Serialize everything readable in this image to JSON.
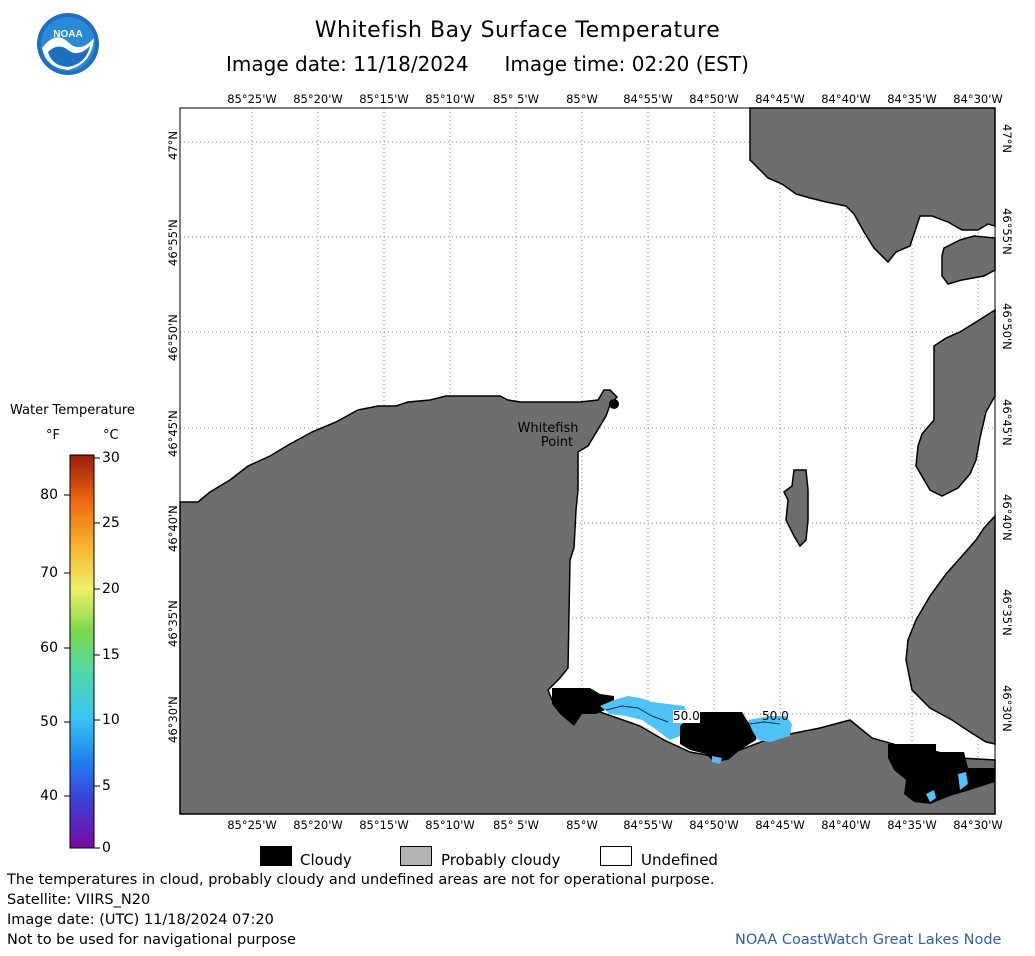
{
  "header": {
    "title": "Whitefish Bay Surface Temperature",
    "image_date": "Image date: 11/18/2024",
    "image_time": "Image time: 02:20 (EST)",
    "logo_text": "NOAA"
  },
  "map": {
    "longitude_labels": [
      "85°25'W",
      "85°20'W",
      "85°15'W",
      "85°10'W",
      "85° 5'W",
      "85°W",
      "84°55'W",
      "84°50'W",
      "84°45'W",
      "84°40'W",
      "84°35'W",
      "84°30'W"
    ],
    "latitude_labels": [
      "47°N",
      "46°55'N",
      "46°50'N",
      "46°45'N",
      "46°40'N",
      "46°35'N",
      "46°30'N"
    ],
    "place_label_line1": "Whitefish",
    "place_label_line2": "Point",
    "contour_labels": [
      "50.0",
      "50.0"
    ],
    "colors": {
      "land": "#6e6e6e",
      "cloud": "#000000",
      "water_temp_10c": "#4fc3f5",
      "water_temp_9c": "#5ab7f0",
      "grid": "#888888"
    }
  },
  "legend": {
    "title": "Water Temperature",
    "unit_f": "°F",
    "unit_c": "°C",
    "f_ticks": [
      "80",
      "70",
      "60",
      "50",
      "40"
    ],
    "c_ticks": [
      "30",
      "25",
      "20",
      "15",
      "10",
      "5",
      "0"
    ],
    "c_range": [
      0,
      30
    ],
    "f_range_approx": [
      32,
      86
    ]
  },
  "key": {
    "cloudy": "Cloudy",
    "probably_cloudy": "Probably cloudy",
    "undefined": "Undefined",
    "colors": {
      "cloudy": "#000000",
      "probably_cloudy": "#b4b4b4",
      "undefined": "#ffffff"
    }
  },
  "footer": {
    "line1": "The temperatures in cloud, probably cloudy and undefined areas are not for operational purpose.",
    "line2": "Satellite: VIIRS_N20",
    "line3": "Image date: (UTC) 11/18/2024  07:20",
    "line4": "Not to be used for navigational purpose",
    "credit": "NOAA CoastWatch Great Lakes Node"
  }
}
